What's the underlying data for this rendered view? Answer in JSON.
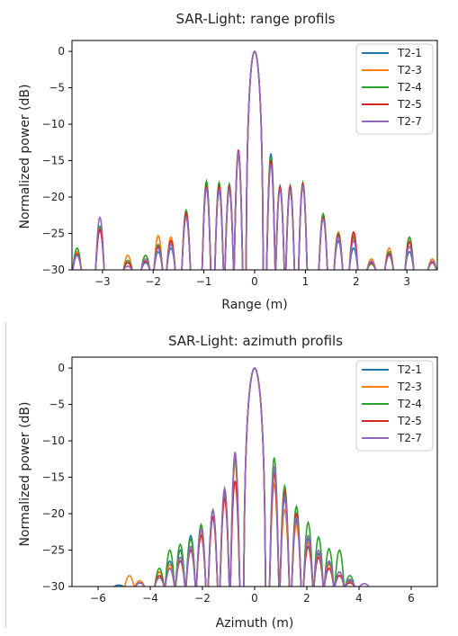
{
  "legend_labels": [
    "T2-1",
    "T2-3",
    "T2-4",
    "T2-5",
    "T2-7"
  ],
  "colors": {
    "T2-1": "#1f77b4",
    "T2-3": "#ff7f0e",
    "T2-4": "#2ca02c",
    "T2-5": "#d62728",
    "T2-7": "#9467bd"
  },
  "chart_data": [
    {
      "type": "line",
      "title": "SAR-Light: range profils",
      "xlabel": "Range (m)",
      "ylabel": "Normalized power (dB)",
      "xlim": [
        -3.6,
        3.6
      ],
      "ylim": [
        -30,
        1.5
      ],
      "xticks": [
        -3,
        -2,
        -1,
        0,
        1,
        2,
        3
      ],
      "xtick_labels": [
        "−3",
        "−2",
        "−1",
        "0",
        "1",
        "2",
        "3"
      ],
      "yticks": [
        0,
        -5,
        -10,
        -15,
        -20,
        -25,
        -30
      ],
      "ytick_labels": [
        "0",
        "−5",
        "−10",
        "−15",
        "−20",
        "−25",
        "−30"
      ],
      "legend_position": "top-right",
      "grid": false,
      "mainlobe_halfwidth": 0.17,
      "series": [
        {
          "name": "T2-1",
          "sidelobes": [
            [
              0.32,
              -14.0
            ],
            [
              0.5,
              -18.5
            ],
            [
              0.7,
              -19.0
            ],
            [
              0.95,
              -18.5
            ],
            [
              1.35,
              -22.5
            ],
            [
              1.65,
              -26.0
            ],
            [
              1.95,
              -27.0
            ],
            [
              2.3,
              -29.0
            ],
            [
              2.65,
              -28.0
            ],
            [
              3.05,
              -27.5
            ],
            [
              3.5,
              -29.0
            ]
          ],
          "left_lobes": [
            [
              -0.32,
              -14.0
            ],
            [
              -0.5,
              -19.0
            ],
            [
              -0.7,
              -19.0
            ],
            [
              -0.95,
              -18.0
            ],
            [
              -1.35,
              -22.5
            ],
            [
              -1.65,
              -27.0
            ],
            [
              -1.9,
              -27.5
            ],
            [
              -2.15,
              -29.0
            ],
            [
              -2.5,
              -29.0
            ],
            [
              -3.05,
              -24.5
            ],
            [
              -3.5,
              -28.0
            ]
          ]
        },
        {
          "name": "T2-3",
          "sidelobes": [
            [
              0.32,
              -14.5
            ],
            [
              0.5,
              -18.7
            ],
            [
              0.7,
              -18.8
            ],
            [
              0.95,
              -18.3
            ],
            [
              1.35,
              -22.7
            ],
            [
              1.65,
              -24.8
            ],
            [
              1.95,
              -25.2
            ],
            [
              2.3,
              -28.5
            ],
            [
              2.65,
              -27.0
            ],
            [
              3.05,
              -26.0
            ],
            [
              3.5,
              -28.5
            ]
          ],
          "left_lobes": [
            [
              -0.32,
              -14.2
            ],
            [
              -0.5,
              -18.8
            ],
            [
              -0.7,
              -18.8
            ],
            [
              -0.95,
              -18.2
            ],
            [
              -1.35,
              -22.3
            ],
            [
              -1.65,
              -25.5
            ],
            [
              -1.9,
              -25.3
            ],
            [
              -2.15,
              -28.0
            ],
            [
              -2.5,
              -28.0
            ],
            [
              -3.05,
              -24.3
            ],
            [
              -3.5,
              -27.5
            ]
          ]
        },
        {
          "name": "T2-4",
          "sidelobes": [
            [
              0.32,
              -14.5
            ],
            [
              0.5,
              -18.5
            ],
            [
              0.7,
              -18.4
            ],
            [
              0.95,
              -18.0
            ],
            [
              1.35,
              -22.3
            ],
            [
              1.65,
              -25.0
            ],
            [
              1.95,
              -25.5
            ],
            [
              2.3,
              -29.2
            ],
            [
              2.65,
              -27.5
            ],
            [
              3.05,
              -25.5
            ],
            [
              3.5,
              -29.0
            ]
          ],
          "left_lobes": [
            [
              -0.32,
              -13.8
            ],
            [
              -0.5,
              -18.2
            ],
            [
              -0.7,
              -18.0
            ],
            [
              -0.95,
              -17.8
            ],
            [
              -1.35,
              -21.8
            ],
            [
              -1.65,
              -26.0
            ],
            [
              -1.9,
              -26.5
            ],
            [
              -2.15,
              -28.0
            ],
            [
              -2.5,
              -28.7
            ],
            [
              -3.05,
              -24.0
            ],
            [
              -3.5,
              -27.0
            ]
          ]
        },
        {
          "name": "T2-5",
          "sidelobes": [
            [
              0.32,
              -15.0
            ],
            [
              0.5,
              -18.6
            ],
            [
              0.7,
              -18.6
            ],
            [
              0.95,
              -18.2
            ],
            [
              1.35,
              -22.8
            ],
            [
              1.65,
              -25.2
            ],
            [
              1.95,
              -24.8
            ],
            [
              2.3,
              -29.0
            ],
            [
              2.65,
              -27.8
            ],
            [
              3.05,
              -26.2
            ],
            [
              3.5,
              -29.0
            ]
          ],
          "left_lobes": [
            [
              -0.32,
              -13.5
            ],
            [
              -0.5,
              -18.6
            ],
            [
              -0.7,
              -18.5
            ],
            [
              -0.95,
              -18.5
            ],
            [
              -1.35,
              -22.2
            ],
            [
              -1.65,
              -26.0
            ],
            [
              -1.9,
              -26.8
            ],
            [
              -2.15,
              -28.8
            ],
            [
              -2.5,
              -29.0
            ],
            [
              -3.05,
              -24.5
            ],
            [
              -3.5,
              -27.8
            ]
          ]
        },
        {
          "name": "T2-7",
          "sidelobes": [
            [
              0.32,
              -15.5
            ],
            [
              0.5,
              -19.0
            ],
            [
              0.7,
              -19.0
            ],
            [
              0.95,
              -18.5
            ],
            [
              1.35,
              -23.0
            ],
            [
              1.65,
              -25.5
            ],
            [
              1.95,
              -26.0
            ],
            [
              2.3,
              -28.8
            ],
            [
              2.65,
              -28.0
            ],
            [
              3.05,
              -26.8
            ],
            [
              3.5,
              -28.8
            ]
          ],
          "left_lobes": [
            [
              -0.32,
              -13.8
            ],
            [
              -0.5,
              -19.0
            ],
            [
              -0.7,
              -19.0
            ],
            [
              -0.95,
              -18.8
            ],
            [
              -1.35,
              -22.8
            ],
            [
              -1.65,
              -26.5
            ],
            [
              -1.9,
              -27.0
            ],
            [
              -2.15,
              -28.5
            ],
            [
              -2.5,
              -29.5
            ],
            [
              -3.05,
              -22.8
            ],
            [
              -3.5,
              -28.0
            ]
          ]
        }
      ]
    },
    {
      "type": "line",
      "title": "SAR-Light: azimuth profils",
      "xlabel": "Azimuth (m)",
      "ylabel": "Normalized power (dB)",
      "xlim": [
        -7,
        7
      ],
      "ylim": [
        -30,
        1.5
      ],
      "xticks": [
        -6,
        -4,
        -2,
        0,
        2,
        4,
        6
      ],
      "xtick_labels": [
        "−6",
        "−4",
        "−2",
        "0",
        "2",
        "4",
        "6"
      ],
      "yticks": [
        0,
        -5,
        -10,
        -15,
        -20,
        -25,
        -30
      ],
      "ytick_labels": [
        "0",
        "−5",
        "−10",
        "−15",
        "−20",
        "−25",
        "−30"
      ],
      "legend_position": "top-right",
      "grid": false,
      "mainlobe_halfwidth": 0.42,
      "series": [
        {
          "name": "T2-1",
          "sidelobes": [
            [
              0.75,
              -14.0
            ],
            [
              1.15,
              -18.0
            ],
            [
              1.6,
              -21.0
            ],
            [
              2.05,
              -23.5
            ],
            [
              2.45,
              -25.5
            ],
            [
              2.85,
              -26.8
            ],
            [
              3.25,
              -28.0
            ],
            [
              3.65,
              -29.2
            ]
          ],
          "left_lobes": [
            [
              -0.75,
              -12.5
            ],
            [
              -1.15,
              -17.5
            ],
            [
              -1.6,
              -19.5
            ],
            [
              -2.05,
              -21.5
            ],
            [
              -2.45,
              -23.0
            ],
            [
              -2.85,
              -25.0
            ],
            [
              -3.25,
              -26.5
            ],
            [
              -3.65,
              -28.0
            ],
            [
              -4.4,
              -29.5
            ],
            [
              -5.2,
              -29.8
            ]
          ]
        },
        {
          "name": "T2-3",
          "sidelobes": [
            [
              0.75,
              -16.0
            ],
            [
              1.15,
              -19.5
            ],
            [
              1.6,
              -21.5
            ],
            [
              2.05,
              -24.0
            ],
            [
              2.45,
              -25.8
            ],
            [
              2.85,
              -27.0
            ],
            [
              3.25,
              -28.5
            ],
            [
              3.65,
              -29.4
            ]
          ],
          "left_lobes": [
            [
              -0.75,
              -13.0
            ],
            [
              -1.15,
              -17.8
            ],
            [
              -1.6,
              -20.5
            ],
            [
              -2.05,
              -22.5
            ],
            [
              -2.45,
              -24.5
            ],
            [
              -2.85,
              -26.0
            ],
            [
              -3.25,
              -27.0
            ],
            [
              -3.65,
              -28.0
            ],
            [
              -4.4,
              -29.2
            ],
            [
              -4.8,
              -28.5
            ]
          ]
        },
        {
          "name": "T2-4",
          "sidelobes": [
            [
              0.75,
              -12.3
            ],
            [
              1.15,
              -16.2
            ],
            [
              1.6,
              -19.0
            ],
            [
              2.05,
              -21.2
            ],
            [
              2.45,
              -23.2
            ],
            [
              2.85,
              -24.8
            ],
            [
              3.25,
              -25.0
            ],
            [
              3.65,
              -28.5
            ]
          ],
          "left_lobes": [
            [
              -0.75,
              -12.0
            ],
            [
              -1.15,
              -16.8
            ],
            [
              -1.6,
              -19.5
            ],
            [
              -2.05,
              -21.5
            ],
            [
              -2.45,
              -23.5
            ],
            [
              -2.85,
              -24.2
            ],
            [
              -3.25,
              -25.0
            ],
            [
              -3.65,
              -27.5
            ],
            [
              -4.4,
              -29.5
            ]
          ]
        },
        {
          "name": "T2-5",
          "sidelobes": [
            [
              0.75,
              -14.5
            ],
            [
              1.15,
              -17.0
            ],
            [
              1.6,
              -20.0
            ],
            [
              2.05,
              -24.5
            ],
            [
              2.45,
              -26.0
            ],
            [
              2.85,
              -27.5
            ],
            [
              3.25,
              -28.5
            ],
            [
              3.65,
              -29.5
            ]
          ],
          "left_lobes": [
            [
              -0.75,
              -15.5
            ],
            [
              -1.15,
              -18.0
            ],
            [
              -1.6,
              -20.5
            ],
            [
              -2.05,
              -23.0
            ],
            [
              -2.45,
              -25.0
            ],
            [
              -2.85,
              -26.5
            ],
            [
              -3.25,
              -27.5
            ],
            [
              -3.65,
              -28.5
            ],
            [
              -4.4,
              -29.5
            ]
          ]
        },
        {
          "name": "T2-7",
          "sidelobes": [
            [
              0.75,
              -13.5
            ],
            [
              1.15,
              -17.5
            ],
            [
              1.6,
              -20.5
            ],
            [
              2.05,
              -23.0
            ],
            [
              2.45,
              -25.0
            ],
            [
              2.85,
              -26.5
            ],
            [
              3.25,
              -28.0
            ],
            [
              3.65,
              -29.0
            ],
            [
              4.2,
              -29.6
            ]
          ],
          "left_lobes": [
            [
              -0.75,
              -11.5
            ],
            [
              -1.15,
              -16.5
            ],
            [
              -1.6,
              -19.5
            ],
            [
              -2.05,
              -22.0
            ],
            [
              -2.45,
              -24.5
            ],
            [
              -2.85,
              -26.0
            ],
            [
              -3.25,
              -27.5
            ],
            [
              -3.65,
              -28.8
            ],
            [
              -4.4,
              -29.5
            ]
          ]
        }
      ]
    }
  ]
}
